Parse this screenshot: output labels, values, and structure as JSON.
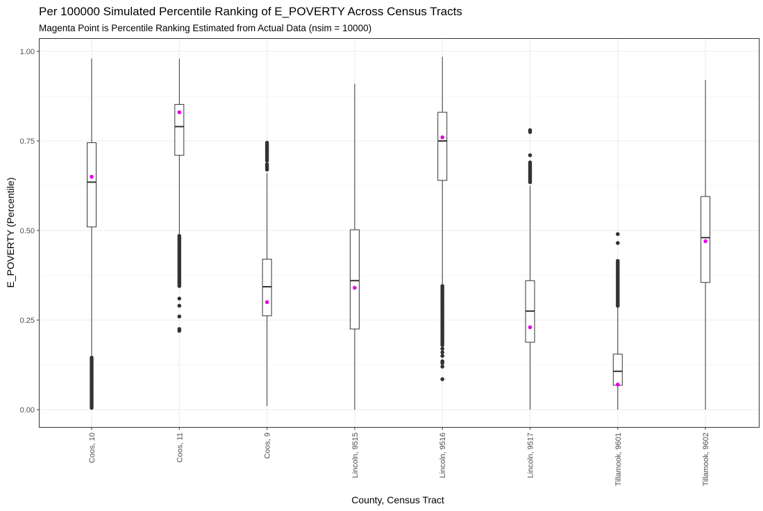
{
  "chart_data": {
    "type": "box",
    "title": "Per 100000 Simulated Percentile Ranking of E_POVERTY Across Census Tracts",
    "subtitle": "Magenta Point is Percentile Ranking Estimated from Actual Data (nsim = 10000)",
    "xlabel": "County, Census Tract",
    "ylabel": "E_POVERTY (Percentile)",
    "ylim": [
      -0.05,
      1.05
    ],
    "y_ticks": [
      0.0,
      0.25,
      0.5,
      0.75,
      1.0
    ],
    "y_tick_labels": [
      "0.00",
      "0.25",
      "0.50",
      "0.75",
      "1.00"
    ],
    "grid": true,
    "colors": {
      "box": "#333333",
      "outlier": "#333333",
      "actual_point": "#e600e6",
      "grid": "#ebebeb",
      "panel_border": "#333333"
    },
    "categories": [
      "Coos, 10",
      "Coos, 11",
      "Coos, 9",
      "Lincoln, 9515",
      "Lincoln, 9516",
      "Lincoln, 9517",
      "Tillamook, 9601",
      "Tillamook, 9602"
    ],
    "boxes": [
      {
        "whisker_low": 0.15,
        "q1": 0.51,
        "median": 0.635,
        "q3": 0.745,
        "whisker_high": 0.98,
        "actual": 0.65,
        "outliers": [
          0.005,
          0.01,
          0.015,
          0.02,
          0.025,
          0.03,
          0.035,
          0.04,
          0.045,
          0.05,
          0.055,
          0.06,
          0.065,
          0.07,
          0.075,
          0.08,
          0.085,
          0.09,
          0.095,
          0.1,
          0.105,
          0.11,
          0.115,
          0.12,
          0.125,
          0.13,
          0.135,
          0.14,
          0.145
        ]
      },
      {
        "whisker_low": 0.49,
        "q1": 0.71,
        "median": 0.79,
        "q3": 0.852,
        "whisker_high": 0.98,
        "actual": 0.83,
        "outliers": [
          0.22,
          0.225,
          0.26,
          0.29,
          0.31,
          0.345,
          0.35,
          0.355,
          0.36,
          0.365,
          0.37,
          0.375,
          0.38,
          0.385,
          0.39,
          0.395,
          0.4,
          0.405,
          0.41,
          0.415,
          0.42,
          0.425,
          0.43,
          0.435,
          0.44,
          0.445,
          0.45,
          0.455,
          0.46,
          0.465,
          0.47,
          0.475,
          0.48,
          0.485
        ]
      },
      {
        "whisker_low": 0.01,
        "q1": 0.262,
        "median": 0.343,
        "q3": 0.42,
        "whisker_high": 0.66,
        "actual": 0.3,
        "outliers": [
          0.67,
          0.675,
          0.68,
          0.685,
          0.695,
          0.7,
          0.705,
          0.71,
          0.715,
          0.72,
          0.725,
          0.73,
          0.735,
          0.74,
          0.745
        ]
      },
      {
        "whisker_low": 0.0,
        "q1": 0.225,
        "median": 0.36,
        "q3": 0.502,
        "whisker_high": 0.91,
        "actual": 0.34,
        "outliers": []
      },
      {
        "whisker_low": 0.35,
        "q1": 0.64,
        "median": 0.75,
        "q3": 0.83,
        "whisker_high": 0.985,
        "actual": 0.76,
        "outliers": [
          0.085,
          0.12,
          0.13,
          0.135,
          0.15,
          0.16,
          0.17,
          0.18,
          0.185,
          0.19,
          0.195,
          0.2,
          0.205,
          0.21,
          0.215,
          0.22,
          0.225,
          0.23,
          0.235,
          0.24,
          0.245,
          0.25,
          0.255,
          0.26,
          0.265,
          0.27,
          0.275,
          0.28,
          0.285,
          0.29,
          0.295,
          0.3,
          0.305,
          0.31,
          0.315,
          0.32,
          0.325,
          0.33,
          0.335,
          0.34,
          0.345
        ]
      },
      {
        "whisker_low": 0.0,
        "q1": 0.188,
        "median": 0.275,
        "q3": 0.36,
        "whisker_high": 0.625,
        "actual": 0.23,
        "outliers": [
          0.635,
          0.64,
          0.645,
          0.65,
          0.655,
          0.66,
          0.665,
          0.67,
          0.675,
          0.68,
          0.685,
          0.69,
          0.71,
          0.775,
          0.78
        ]
      },
      {
        "whisker_low": 0.0,
        "q1": 0.068,
        "median": 0.107,
        "q3": 0.155,
        "whisker_high": 0.285,
        "actual": 0.07,
        "outliers": [
          0.29,
          0.295,
          0.3,
          0.305,
          0.31,
          0.315,
          0.32,
          0.325,
          0.33,
          0.335,
          0.34,
          0.345,
          0.35,
          0.355,
          0.36,
          0.365,
          0.37,
          0.375,
          0.38,
          0.385,
          0.39,
          0.395,
          0.4,
          0.405,
          0.41,
          0.415,
          0.465,
          0.49
        ]
      },
      {
        "whisker_low": 0.0,
        "q1": 0.355,
        "median": 0.48,
        "q3": 0.595,
        "whisker_high": 0.92,
        "actual": 0.47,
        "outliers": []
      }
    ]
  }
}
